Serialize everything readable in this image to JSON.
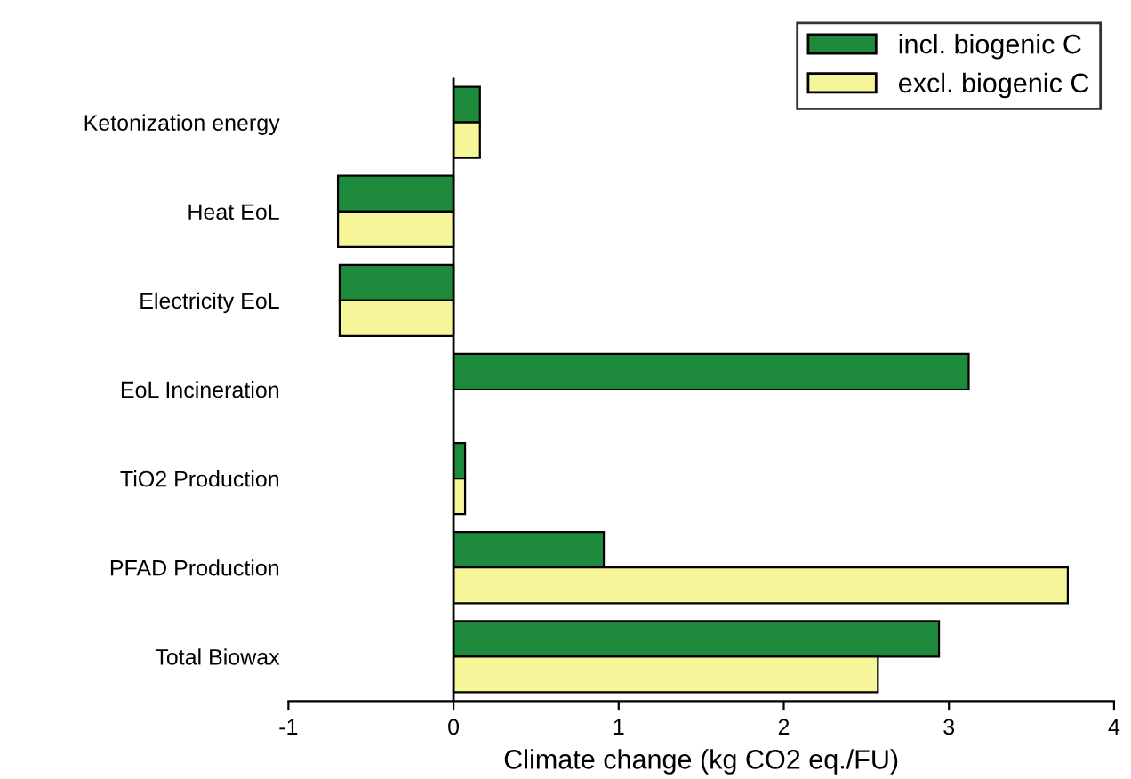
{
  "chart_data": {
    "type": "bar",
    "orientation": "horizontal",
    "xlabel": "Climate change (kg CO2 eq./FU)",
    "categories": [
      "Ketonization energy",
      "Heat EoL",
      "Electricity EoL",
      "EoL Incineration",
      "TiO2 Production",
      "PFAD Production",
      "Total Biowax"
    ],
    "series": [
      {
        "name": "incl. biogenic C",
        "color": "#1e8a3c",
        "values": [
          0.16,
          -0.7,
          -0.69,
          3.12,
          0.07,
          0.91,
          2.94
        ]
      },
      {
        "name": "excl. biogenic C",
        "color": "#f7f59a",
        "values": [
          0.16,
          -0.7,
          -0.69,
          null,
          0.07,
          3.72,
          2.57
        ]
      }
    ],
    "xlim": [
      -1,
      4
    ],
    "xticks": [
      -1,
      0,
      1,
      2,
      3,
      4
    ],
    "grid": false,
    "legend": "top right",
    "ref_lines": [
      {
        "axis": "x",
        "value": 0
      }
    ]
  }
}
